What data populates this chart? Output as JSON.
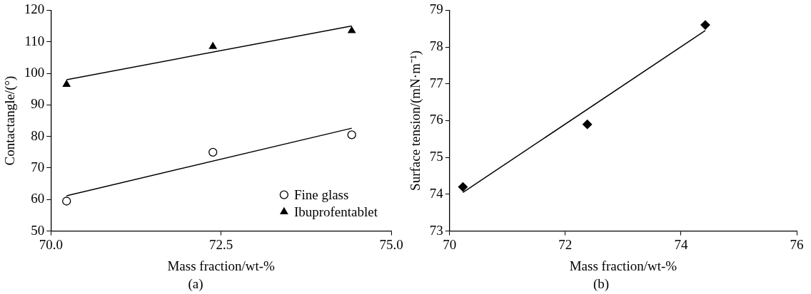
{
  "chart_data": [
    {
      "type": "scatter",
      "title": "(a)",
      "xlabel": "Mass fraction/wt-%",
      "ylabel": "Contactangle/(°)",
      "xlim": [
        70,
        75
      ],
      "xticks": [
        {
          "value": 70,
          "label": "70.0"
        },
        {
          "value": 72.5,
          "label": "72.5"
        },
        {
          "value": 75,
          "label": "75.0"
        }
      ],
      "ylim": [
        50,
        120
      ],
      "yticks": [
        50,
        60,
        70,
        80,
        90,
        100,
        110,
        120
      ],
      "grid": false,
      "legend": "bottom right",
      "x": [
        70.23,
        72.38,
        74.42
      ],
      "series": [
        {
          "name": "Fine glass",
          "color": "#000000",
          "marker": "circle",
          "values": [
            59.5,
            75,
            80.5
          ]
        },
        {
          "name": "Ibuprofentablet",
          "color": "#000000",
          "marker": "triangle",
          "values": [
            96.5,
            108.5,
            113.5
          ]
        },
        {
          "type": "line",
          "color": "#000000",
          "marker": "none",
          "values": [
            61.2,
            null,
            82.6
          ]
        },
        {
          "type": "line",
          "color": "#000000",
          "marker": "none",
          "values": [
            98,
            null,
            115
          ]
        }
      ]
    },
    {
      "type": "scatter",
      "title": "(b)",
      "xlabel": "Mass fraction/wt-%",
      "ylabel": "Surface tension/(mN·m⁻¹)",
      "xlim": [
        70,
        76
      ],
      "xticks": [
        70,
        72,
        74,
        76
      ],
      "ylim": [
        73,
        79
      ],
      "yticks": [
        73,
        74,
        75,
        76,
        77,
        78,
        79
      ],
      "grid": false,
      "legend": false,
      "x": [
        70.23,
        72.38,
        74.42
      ],
      "series": [
        {
          "color": "#000000",
          "marker": "diamond",
          "values": [
            74.2,
            75.9,
            78.6
          ]
        },
        {
          "type": "line",
          "color": "#000000",
          "marker": "none",
          "values": [
            74.05,
            null,
            78.45
          ]
        }
      ]
    }
  ]
}
